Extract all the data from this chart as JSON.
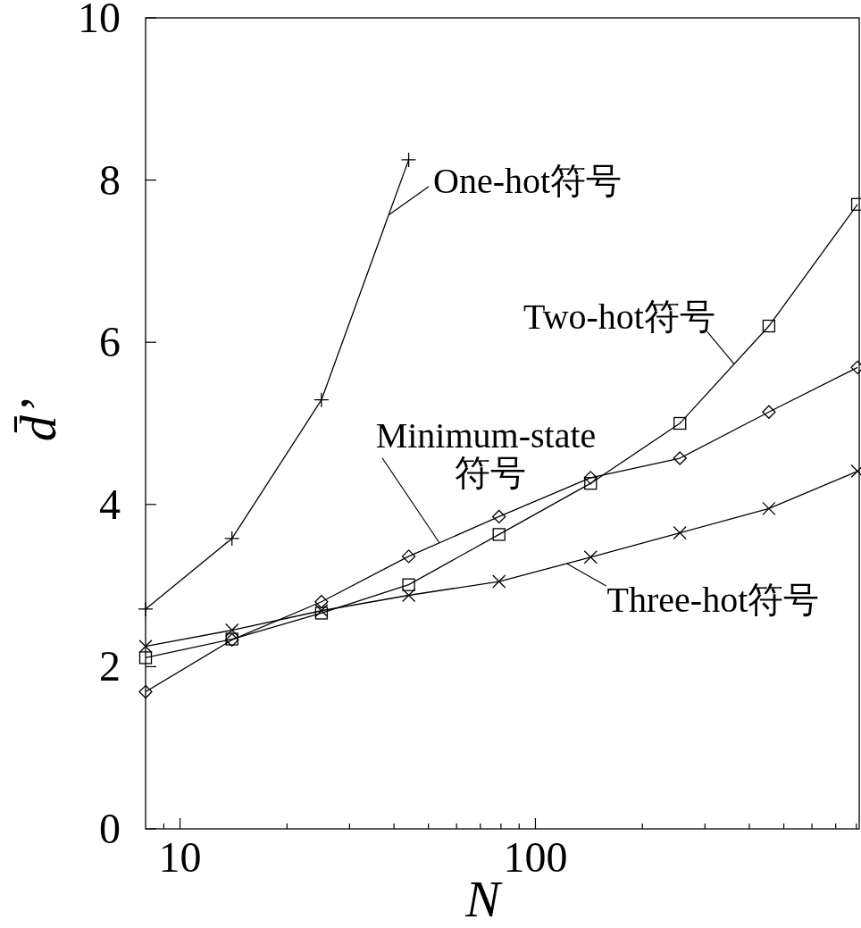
{
  "chart_data": {
    "type": "line",
    "log": "x",
    "x": [
      8,
      14,
      25,
      44,
      79,
      143,
      255,
      454,
      806
    ],
    "series": [
      {
        "name": "One-hot符号",
        "color": "#000000",
        "marker": "plus",
        "values": [
          2.71,
          3.58,
          5.29,
          8.25,
          null,
          null,
          null,
          null,
          null
        ]
      },
      {
        "name": "Two-hot符号",
        "color": "#000000",
        "marker": "square",
        "values": [
          2.11,
          2.34,
          2.66,
          3.01,
          3.63,
          4.26,
          5.0,
          6.2,
          7.7
        ]
      },
      {
        "name": "Minimum-state 符号",
        "color": "#000000",
        "marker": "diamond",
        "values": [
          1.69,
          2.33,
          2.8,
          3.36,
          3.85,
          4.33,
          4.57,
          5.14,
          5.69
        ]
      },
      {
        "name": "Three-hot符号",
        "color": "#000000",
        "marker": "cross",
        "values": [
          2.25,
          2.45,
          2.69,
          2.88,
          3.05,
          3.35,
          3.65,
          3.95,
          4.41
        ]
      }
    ],
    "xlim": [
      8,
      815
    ],
    "ylim": [
      0,
      10
    ],
    "xticks": [
      {
        "value": 9,
        "label": null
      },
      10,
      {
        "value": 20,
        "label": null
      },
      {
        "value": 30,
        "label": null
      },
      {
        "value": 40,
        "label": null
      },
      {
        "value": 50,
        "label": null
      },
      {
        "value": 60,
        "label": null
      },
      {
        "value": 70,
        "label": null
      },
      {
        "value": 80,
        "label": null
      },
      {
        "value": 90,
        "label": null
      },
      100,
      {
        "value": 200,
        "label": null
      },
      {
        "value": 300,
        "label": null
      },
      {
        "value": 400,
        "label": null
      },
      {
        "value": 500,
        "label": null
      },
      {
        "value": 600,
        "label": null
      },
      {
        "value": 700,
        "label": null
      },
      {
        "value": 800,
        "label": null
      }
    ],
    "yticks": [
      0,
      2,
      4,
      6,
      8,
      10
    ],
    "xlabel": "N",
    "ylabel": "d̄’",
    "legend": "right"
  }
}
